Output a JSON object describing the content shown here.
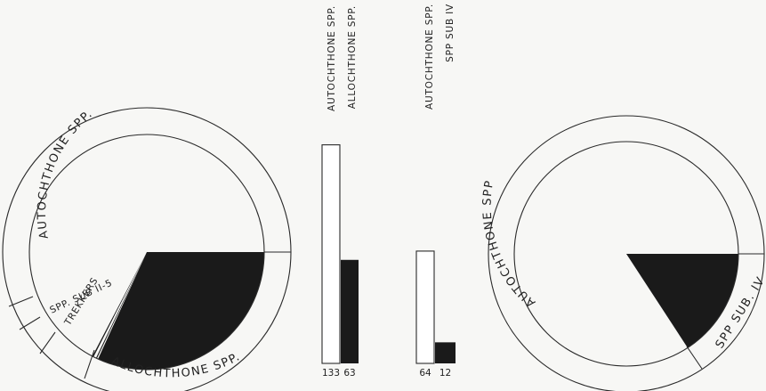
{
  "chart_data": [
    {
      "type": "pie",
      "labels": [
        "AUTOCHTHONE SPP.",
        "ALLOCHTHONE SPP.",
        "TREKKERS",
        "SPP. SUB II-5"
      ],
      "values": [
        133,
        63,
        1,
        1
      ],
      "colors": [
        "#ffffff",
        "#1a1a1a",
        "#1a1a1a",
        "#1a1a1a"
      ]
    },
    {
      "type": "bar",
      "categories": [
        "AUTOCHTHONE SPP.",
        "ALLOCHTHONE SPP."
      ],
      "values": [
        133,
        63
      ],
      "tick_labels": [
        "133",
        "63"
      ],
      "colors": [
        "#ffffff",
        "#1a1a1a"
      ]
    },
    {
      "type": "bar",
      "categories": [
        "AUTOCHTHONE SPP.",
        "SPP SUB IV"
      ],
      "values": [
        64,
        12
      ],
      "tick_labels": [
        "64",
        "12"
      ],
      "colors": [
        "#ffffff",
        "#1a1a1a"
      ]
    },
    {
      "type": "pie",
      "labels": [
        "AUTOCHTHONE SPP",
        "SPP SUB. IV"
      ],
      "values": [
        64,
        12
      ],
      "colors": [
        "#ffffff",
        "#1a1a1a"
      ]
    }
  ]
}
